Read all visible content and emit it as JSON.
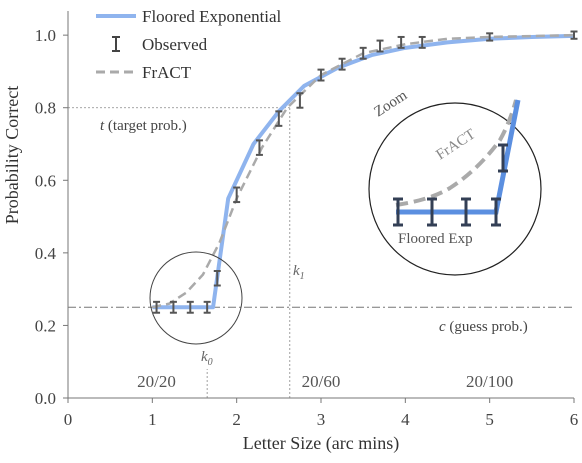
{
  "colors": {
    "floored": "#8fb4ee",
    "observed": "#555555",
    "fract": "#aaaaaa",
    "axis": "#777777",
    "zoom_floored": "#5b8fe0",
    "zoom_observed": "#333f55"
  },
  "chart_data": {
    "type": "line",
    "xlabel": "Letter Size (arc mins)",
    "ylabel": "Probability Correct",
    "xlim": [
      0,
      6
    ],
    "ylim": [
      0,
      1.05
    ],
    "x_ticks": [
      "0",
      "1",
      "2",
      "3",
      "4",
      "5",
      "6"
    ],
    "y_ticks": [
      "0.0",
      "0.2",
      "0.4",
      "0.6",
      "0.8",
      "1.0"
    ],
    "grid": false,
    "legend_position": "top-left",
    "legend": [
      {
        "label": "Floored Exponential",
        "style": "line"
      },
      {
        "label": "Observed",
        "style": "errorbar"
      },
      {
        "label": "FrACT",
        "style": "dashed"
      }
    ],
    "series": [
      {
        "name": "Floored Exponential",
        "x": [
          1.0,
          1.72,
          1.9,
          2.2,
          2.5,
          2.8,
          3.2,
          3.6,
          4.0,
          4.5,
          5.0,
          5.5,
          6.0
        ],
        "y": [
          0.25,
          0.25,
          0.55,
          0.7,
          0.79,
          0.86,
          0.91,
          0.945,
          0.965,
          0.98,
          0.99,
          0.995,
          0.998
        ]
      },
      {
        "name": "Observed",
        "x": [
          1.05,
          1.25,
          1.45,
          1.65,
          1.77,
          2.0,
          2.27,
          2.5,
          2.75,
          3.0,
          3.25,
          3.5,
          3.7,
          3.95,
          4.2,
          5.0,
          6.0
        ],
        "y": [
          0.25,
          0.25,
          0.25,
          0.25,
          0.33,
          0.56,
          0.69,
          0.77,
          0.82,
          0.89,
          0.92,
          0.95,
          0.97,
          0.98,
          0.98,
          0.995,
          1.0
        ],
        "err": [
          0.015,
          0.015,
          0.015,
          0.015,
          0.02,
          0.02,
          0.02,
          0.02,
          0.02,
          0.015,
          0.015,
          0.015,
          0.015,
          0.015,
          0.015,
          0.01,
          0.01
        ]
      },
      {
        "name": "FrACT",
        "x": [
          1.0,
          1.2,
          1.4,
          1.6,
          1.8,
          2.0,
          2.3,
          2.6,
          3.0,
          3.5,
          4.0,
          4.5,
          5.0,
          6.0
        ],
        "y": [
          0.25,
          0.26,
          0.29,
          0.34,
          0.43,
          0.55,
          0.69,
          0.8,
          0.89,
          0.95,
          0.975,
          0.99,
          0.995,
          1.0
        ]
      }
    ],
    "reference_lines": [
      {
        "orientation": "horizontal",
        "value": 0.25,
        "label": "c (guess prob.)"
      },
      {
        "orientation": "horizontal",
        "value": 0.8,
        "label": "t (target prob.)",
        "x_max": 2.63
      },
      {
        "orientation": "vertical",
        "value": 2.63,
        "label": "k1",
        "y_max": 0.8
      },
      {
        "orientation": "vertical",
        "value": 1.65,
        "label": "k0",
        "y_max": 0.08
      }
    ],
    "acuity_labels": [
      {
        "text": "20/20",
        "x": 1.05
      },
      {
        "text": "20/60",
        "x": 3.0
      },
      {
        "text": "20/100",
        "x": 5.0
      }
    ],
    "annotations": {
      "zoom_label": "Zoom",
      "zoom_fract_label": "FrACT",
      "zoom_floored_label": "Floored Exp",
      "k0_main": "k",
      "k0_sub": "0",
      "k1_main": "k",
      "k1_sub": "1",
      "t_symbol": "t",
      "t_text": " (target prob.)",
      "c_symbol": "c",
      "c_text": " (guess prob.)"
    }
  }
}
